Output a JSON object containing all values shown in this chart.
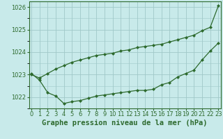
{
  "line1_x": [
    0,
    1,
    2,
    3,
    4,
    5,
    6,
    7,
    8,
    9,
    10,
    11,
    12,
    13,
    14,
    15,
    16,
    17,
    18,
    19,
    20,
    21,
    22,
    23
  ],
  "line1_y": [
    1023.0,
    1022.85,
    1023.05,
    1023.25,
    1023.4,
    1023.55,
    1023.65,
    1023.75,
    1023.85,
    1023.9,
    1023.95,
    1024.05,
    1024.1,
    1024.2,
    1024.25,
    1024.3,
    1024.35,
    1024.45,
    1024.55,
    1024.65,
    1024.75,
    1024.95,
    1025.1,
    1026.05
  ],
  "line2_x": [
    0,
    1,
    2,
    3,
    4,
    5,
    6,
    7,
    8,
    9,
    10,
    11,
    12,
    13,
    14,
    15,
    16,
    17,
    18,
    19,
    20,
    21,
    22,
    23
  ],
  "line2_y": [
    1023.05,
    1022.75,
    1022.2,
    1022.05,
    1021.72,
    1021.8,
    1021.85,
    1021.95,
    1022.05,
    1022.1,
    1022.15,
    1022.2,
    1022.25,
    1022.3,
    1022.3,
    1022.35,
    1022.55,
    1022.65,
    1022.9,
    1023.05,
    1023.2,
    1023.65,
    1024.05,
    1024.4
  ],
  "line_color": "#2d6a2d",
  "bg_color": "#c8eaea",
  "grid_color": "#a0c8c8",
  "xlabel": "Graphe pression niveau de la mer (hPa)",
  "xlim": [
    -0.3,
    23.3
  ],
  "ylim": [
    1021.5,
    1026.25
  ],
  "yticks": [
    1022,
    1023,
    1024,
    1025,
    1026
  ],
  "xticks": [
    0,
    1,
    2,
    3,
    4,
    5,
    6,
    7,
    8,
    9,
    10,
    11,
    12,
    13,
    14,
    15,
    16,
    17,
    18,
    19,
    20,
    21,
    22,
    23
  ],
  "xlabel_fontsize": 7.5,
  "tick_fontsize": 6,
  "marker": "D",
  "markersize": 2.0,
  "linewidth": 0.9
}
